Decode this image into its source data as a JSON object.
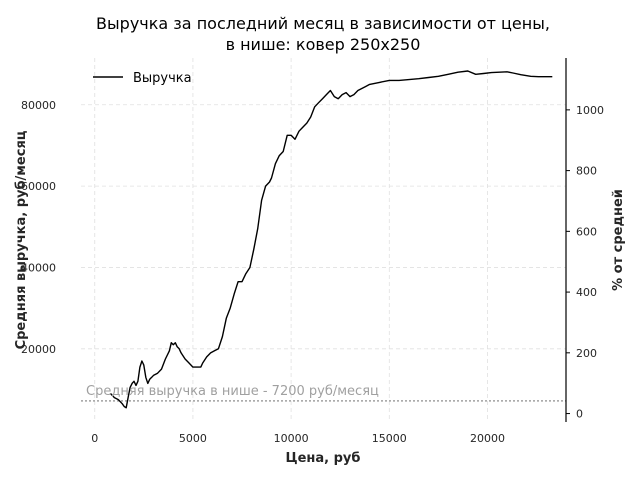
{
  "chart_data": {
    "type": "line",
    "title_line1": "Выручка за последний месяц в зависимости от цены,",
    "title_line2": "в нише: ковер 250х250",
    "xlabel": "Цена, руб",
    "ylabel_left": "Средняя выручка, руб/месяц",
    "ylabel_right": "% от средней",
    "xlim": [
      -700,
      24000
    ],
    "ylim": [
      2000,
      91500
    ],
    "y2lim": [
      -27.8,
      1170.8
    ],
    "x_ticks": [
      0,
      5000,
      10000,
      15000,
      20000
    ],
    "x_tick_labels": [
      "0",
      "5000",
      "10000",
      "15000",
      "20000"
    ],
    "y_ticks": [
      20000,
      40000,
      60000,
      80000
    ],
    "y_tick_labels": [
      "20000",
      "40000",
      "60000",
      "80000"
    ],
    "y2_ticks": [
      0,
      200,
      400,
      600,
      800,
      1000
    ],
    "y2_tick_labels": [
      "0",
      "200",
      "400",
      "600",
      "800",
      "1000"
    ],
    "grid": true,
    "legend_position": "top-left",
    "series": [
      {
        "name": "Выручка",
        "color": "#000000",
        "x": [
          800,
          1000,
          1200,
          1400,
          1500,
          1600,
          1700,
          1800,
          1900,
          2000,
          2100,
          2200,
          2300,
          2400,
          2500,
          2600,
          2700,
          2800,
          2900,
          3000,
          3200,
          3400,
          3600,
          3800,
          3900,
          4000,
          4100,
          4200,
          4300,
          4400,
          4600,
          4800,
          5000,
          5200,
          5400,
          5500,
          5700,
          5900,
          6100,
          6300,
          6500,
          6700,
          6900,
          7100,
          7300,
          7500,
          7700,
          7900,
          8100,
          8300,
          8500,
          8700,
          8900,
          9000,
          9200,
          9400,
          9600,
          9800,
          10000,
          10200,
          10400,
          10600,
          10800,
          11000,
          11200,
          11400,
          11600,
          11800,
          12000,
          12200,
          12400,
          12600,
          12800,
          13000,
          13200,
          13400,
          13600,
          13800,
          14000,
          14500,
          15000,
          15500,
          16000,
          16500,
          17000,
          17500,
          18000,
          18500,
          19000,
          19400,
          19800,
          20200,
          20600,
          21000,
          21300,
          21700,
          22200,
          22600,
          23000,
          23300
        ],
        "values": [
          9000,
          8000,
          7500,
          6500,
          5800,
          5500,
          8000,
          10500,
          11500,
          12000,
          11000,
          12000,
          15500,
          17000,
          16000,
          13000,
          11500,
          12500,
          13000,
          13500,
          14000,
          15000,
          17500,
          19500,
          21500,
          21000,
          21500,
          20500,
          20000,
          19000,
          17500,
          16500,
          15500,
          15500,
          15500,
          16500,
          18000,
          19000,
          19500,
          20000,
          23000,
          27500,
          30000,
          33500,
          36500,
          36500,
          38500,
          40000,
          44500,
          49500,
          56500,
          60000,
          61000,
          62000,
          65500,
          67500,
          68500,
          72500,
          72500,
          71500,
          73500,
          74500,
          75500,
          77000,
          79500,
          80500,
          81500,
          82500,
          83500,
          82000,
          81500,
          82500,
          83000,
          82000,
          82500,
          83500,
          84000,
          84500,
          85000,
          85500,
          86000,
          86000,
          86200,
          86400,
          86700,
          87000,
          87500,
          88000,
          88300,
          87500,
          87700,
          87900,
          88000,
          88100,
          87800,
          87400,
          87000,
          86900,
          86900,
          86900
        ]
      }
    ],
    "mean_line": {
      "value": 7200,
      "label": "Средняя выручка в нише - 7200 руб/месяц",
      "color": "#a0a0a0"
    }
  }
}
